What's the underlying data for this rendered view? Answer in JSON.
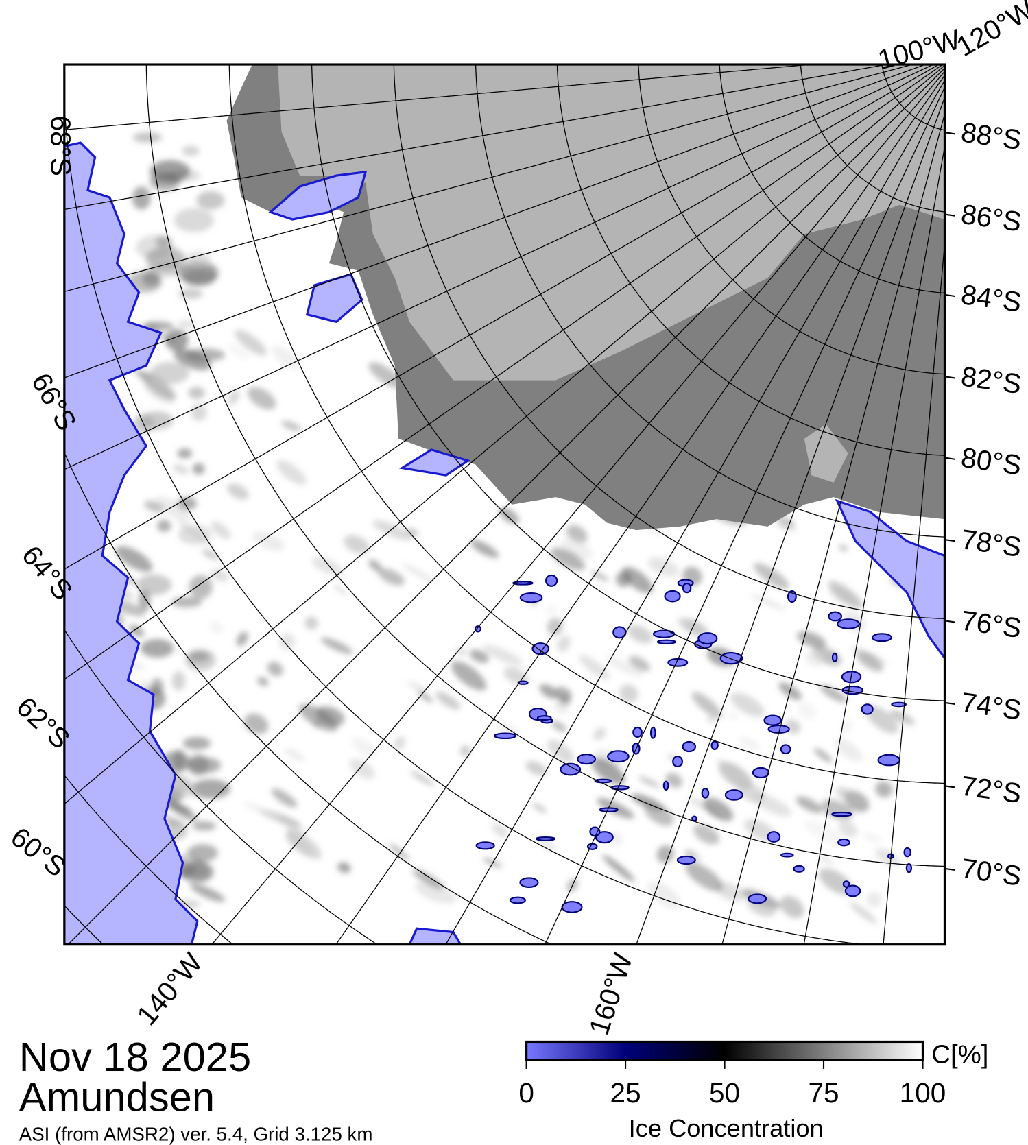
{
  "title": {
    "date": "Nov 18 2025",
    "region": "Amundsen",
    "subtitle": "ASI (from AMSR2) ver. 5.4,  Grid 3.125 km"
  },
  "map": {
    "projection": "polar stereographic (south)",
    "colors": {
      "land": "#b4b4b4",
      "ice_shelf": "#808080",
      "open_water": "#b4b4ff",
      "sea_ice": "#ffffff",
      "grid": "#000000"
    },
    "latitude_labels_right": [
      "88°S",
      "86°S",
      "84°S",
      "82°S",
      "80°S",
      "78°S",
      "76°S",
      "74°S",
      "72°S",
      "70°S"
    ],
    "latitude_labels_left": [
      "68°S",
      "66°S",
      "64°S",
      "62°S",
      "60°S"
    ],
    "longitude_labels": [
      "100°W",
      "120°W",
      "140°W",
      "160°W"
    ],
    "grid_lat_step_deg": 2,
    "grid_lon_step_deg": 5
  },
  "colorbar": {
    "unit": "C[%]",
    "label": "Ice Concentration",
    "ticks": [
      "0",
      "25",
      "50",
      "75",
      "100"
    ],
    "range": [
      0,
      100
    ],
    "colors": [
      "#7878ff",
      "#00007a",
      "#000000",
      "#808080",
      "#ffffff"
    ]
  }
}
